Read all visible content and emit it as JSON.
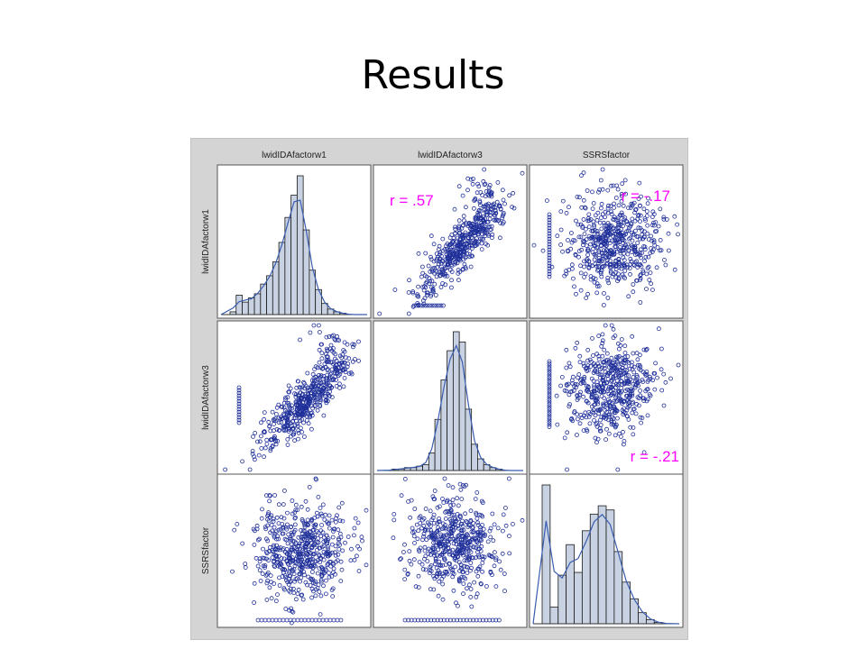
{
  "slide": {
    "title": "Results"
  },
  "colors": {
    "point": "#1f2f99",
    "bar_fill": "#c8d2e2",
    "bar_stroke": "#1a1a1a",
    "curve": "#3a5db0",
    "annotation": "#ff00ff",
    "cell_border": "#555555",
    "background": "#d4d4d4"
  },
  "chart_data": {
    "type": "scatter",
    "subtype": "scatterplot-matrix",
    "variables": [
      "lwidIDAfactorw1",
      "lwidIDAfactorw3",
      "SSRSfactor"
    ],
    "diagonal": "histogram-with-density",
    "correlations": [
      {
        "row": 0,
        "col": 1,
        "label": "r = .57",
        "r": 0.57,
        "position": "top-left"
      },
      {
        "row": 0,
        "col": 2,
        "label": "r = -.17",
        "r": -0.17,
        "position": "top-right"
      },
      {
        "row": 1,
        "col": 2,
        "label": "r = -.21",
        "r": -0.21,
        "position": "bottom-right"
      }
    ],
    "histograms": [
      {
        "variable": "lwidIDAfactorw1",
        "counts": [
          2,
          14,
          9,
          12,
          15,
          22,
          28,
          38,
          52,
          70,
          86,
          100,
          61,
          32,
          18,
          8,
          4,
          2,
          1,
          0,
          0
        ]
      },
      {
        "variable": "lwidIDAfactorw3",
        "counts": [
          0,
          1,
          1,
          2,
          2,
          3,
          4,
          12,
          35,
          62,
          82,
          95,
          88,
          42,
          18,
          8,
          4,
          2,
          1,
          0,
          0
        ]
      },
      {
        "variable": "SSRSfactor",
        "counts": [
          100,
          12,
          35,
          57,
          37,
          67,
          79,
          85,
          82,
          52,
          30,
          18,
          8,
          3,
          1,
          0
        ]
      }
    ],
    "grid": false,
    "legend": "none"
  }
}
